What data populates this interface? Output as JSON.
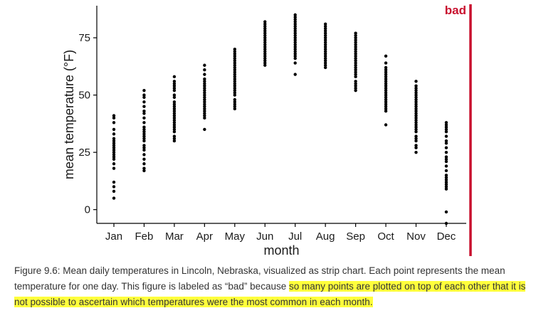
{
  "chart_data": {
    "type": "scatter",
    "title": "",
    "xlabel": "month",
    "ylabel": "mean temperature (°F)",
    "categories": [
      "Jan",
      "Feb",
      "Mar",
      "Apr",
      "May",
      "Jun",
      "Jul",
      "Aug",
      "Sep",
      "Oct",
      "Nov",
      "Dec"
    ],
    "yticks": [
      0,
      25,
      50,
      75
    ],
    "ylim": [
      -6,
      89
    ],
    "grid": false,
    "annotation": "bad",
    "points": {
      "Jan": [
        5,
        8,
        10,
        12,
        18,
        20,
        22,
        23,
        24,
        25,
        26,
        27,
        28,
        29,
        30,
        31,
        33,
        35,
        38,
        40,
        41
      ],
      "Feb": [
        17,
        18,
        20,
        22,
        24,
        26,
        27,
        28,
        30,
        31,
        32,
        33,
        34,
        35,
        36,
        38,
        40,
        42,
        43,
        45,
        47,
        49,
        50,
        52
      ],
      "Mar": [
        30,
        31,
        32,
        34,
        35,
        36,
        37,
        38,
        39,
        40,
        41,
        42,
        43,
        44,
        45,
        46,
        47,
        49,
        50,
        52,
        53,
        54,
        55,
        56,
        58
      ],
      "Apr": [
        35,
        40,
        41,
        42,
        43,
        44,
        45,
        46,
        47,
        48,
        49,
        50,
        51,
        52,
        53,
        54,
        55,
        56,
        57,
        59,
        61,
        63
      ],
      "May": [
        44,
        45,
        46,
        47,
        48,
        50,
        51,
        52,
        53,
        54,
        55,
        56,
        57,
        58,
        59,
        60,
        61,
        62,
        63,
        64,
        65,
        66,
        67,
        68,
        69,
        70
      ],
      "Jun": [
        63,
        64,
        65,
        66,
        67,
        68,
        69,
        70,
        71,
        72,
        73,
        74,
        75,
        76,
        77,
        78,
        79,
        80,
        81,
        82
      ],
      "Jul": [
        59,
        64,
        66,
        67,
        68,
        69,
        70,
        71,
        72,
        73,
        74,
        75,
        76,
        77,
        78,
        79,
        80,
        81,
        82,
        83,
        84,
        85
      ],
      "Aug": [
        62,
        63,
        64,
        65,
        66,
        67,
        68,
        69,
        70,
        71,
        72,
        73,
        74,
        75,
        76,
        77,
        78,
        79,
        80,
        81
      ],
      "Sep": [
        52,
        53,
        54,
        55,
        56,
        58,
        59,
        60,
        61,
        62,
        63,
        64,
        65,
        66,
        67,
        68,
        69,
        70,
        71,
        72,
        73,
        74,
        75,
        76,
        77
      ],
      "Oct": [
        37,
        43,
        44,
        45,
        46,
        47,
        48,
        49,
        50,
        51,
        52,
        53,
        54,
        55,
        56,
        57,
        58,
        59,
        60,
        61,
        62,
        64,
        67
      ],
      "Nov": [
        25,
        27,
        28,
        30,
        31,
        32,
        34,
        35,
        36,
        37,
        38,
        39,
        40,
        41,
        42,
        43,
        44,
        45,
        46,
        47,
        48,
        49,
        50,
        51,
        52,
        53,
        54,
        56
      ],
      "Dec": [
        -6,
        -1,
        9,
        10,
        11,
        12,
        13,
        14,
        15,
        17,
        19,
        21,
        22,
        23,
        25,
        27,
        29,
        30,
        32,
        34,
        35,
        36,
        37,
        38
      ]
    }
  },
  "colors": {
    "points": "#000000",
    "axis": "#000000",
    "bad_accent": "#c8102e",
    "highlight": "#ffff3c"
  },
  "caption": {
    "intro": "Figure 9.6: Mean daily temperatures in Lincoln, Nebraska, visualized as strip chart. Each point represents the mean temperature for one day. This figure is labeled as “bad” because ",
    "highlight": "so many points are plotted on top of each other that it is not possible to ascertain which temperatures were the most common in each month."
  }
}
